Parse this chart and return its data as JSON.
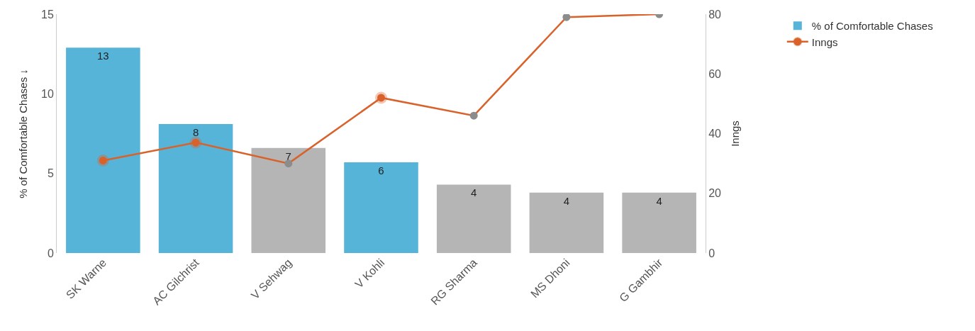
{
  "chart_data": {
    "type": "bar",
    "ylabel": "% of Comfortable Chases ↓",
    "y2label": "Inngs",
    "categories": [
      "SK Warne",
      "AC Gilchrist",
      "V Sehwag",
      "V Kohli",
      "RG Sharma",
      "MS Dhoni",
      "G Gambhir"
    ],
    "series": [
      {
        "name": "% of Comfortable Chases",
        "color": "#56b4d9",
        "colors": [
          "#56b4d9",
          "#56b4d9",
          "#b5b5b5",
          "#56b4d9",
          "#b5b5b5",
          "#b5b5b5",
          "#b5b5b5"
        ],
        "values": [
          12.9,
          8.1,
          6.6,
          5.7,
          4.3,
          3.8,
          3.8
        ],
        "value_labels": [
          "13",
          "8",
          "7",
          "6",
          "4",
          "4",
          "4"
        ]
      },
      {
        "name": "Inngs",
        "type": "line",
        "axis": "y2",
        "color": "#d9622b",
        "colors": [
          "#d9622b",
          "#d9622b",
          "#8c8c8c",
          "#d9622b",
          "#8c8c8c",
          "#8c8c8c",
          "#8c8c8c"
        ],
        "values": [
          31,
          37,
          30,
          52,
          46,
          79,
          80
        ]
      }
    ],
    "ylim": [
      0,
      15
    ],
    "yticks": [
      0,
      5,
      10,
      15
    ],
    "y2lim": [
      0,
      80
    ],
    "y2ticks": [
      0,
      20,
      40,
      60,
      80
    ],
    "legend": "top right",
    "marker": "circle",
    "line_style": "solid"
  }
}
